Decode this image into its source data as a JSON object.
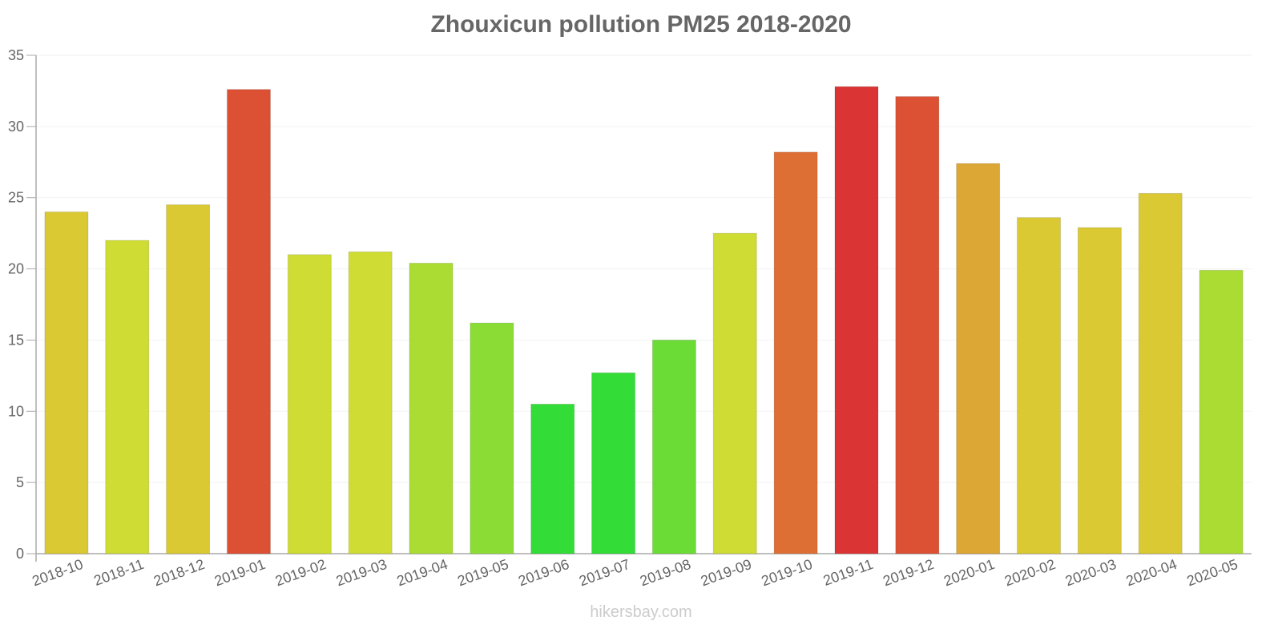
{
  "chart_data": {
    "type": "bar",
    "title": "Zhouxicun pollution PM25 2018-2020",
    "xlabel": "",
    "ylabel": "",
    "ylim": [
      0,
      35
    ],
    "yticks": [
      0,
      5,
      10,
      15,
      20,
      25,
      30,
      35
    ],
    "grid": true,
    "legend": "none",
    "categories": [
      "2018-10",
      "2018-11",
      "2018-12",
      "2019-01",
      "2019-02",
      "2019-03",
      "2019-04",
      "2019-05",
      "2019-06",
      "2019-07",
      "2019-08",
      "2019-09",
      "2019-10",
      "2019-11",
      "2019-12",
      "2020-01",
      "2020-02",
      "2020-03",
      "2020-04",
      "2020-05"
    ],
    "values": [
      24,
      22,
      24.5,
      32.6,
      21,
      21.2,
      20.4,
      16.2,
      10.5,
      12.7,
      15,
      22.5,
      28.2,
      32.8,
      32.1,
      27.4,
      23.6,
      22.9,
      25.3,
      19.9
    ],
    "colors": [
      "#dac932",
      "#cfdc33",
      "#dac932",
      "#dc5034",
      "#cfdc33",
      "#cfdc33",
      "#abdc33",
      "#8bdd36",
      "#33dc37",
      "#33dc37",
      "#6bdc36",
      "#cfdc33",
      "#dd6f34",
      "#db3434",
      "#dc5034",
      "#dca734",
      "#dac932",
      "#dac932",
      "#dac932",
      "#abdc33"
    ]
  },
  "watermark": "hikersbay.com"
}
